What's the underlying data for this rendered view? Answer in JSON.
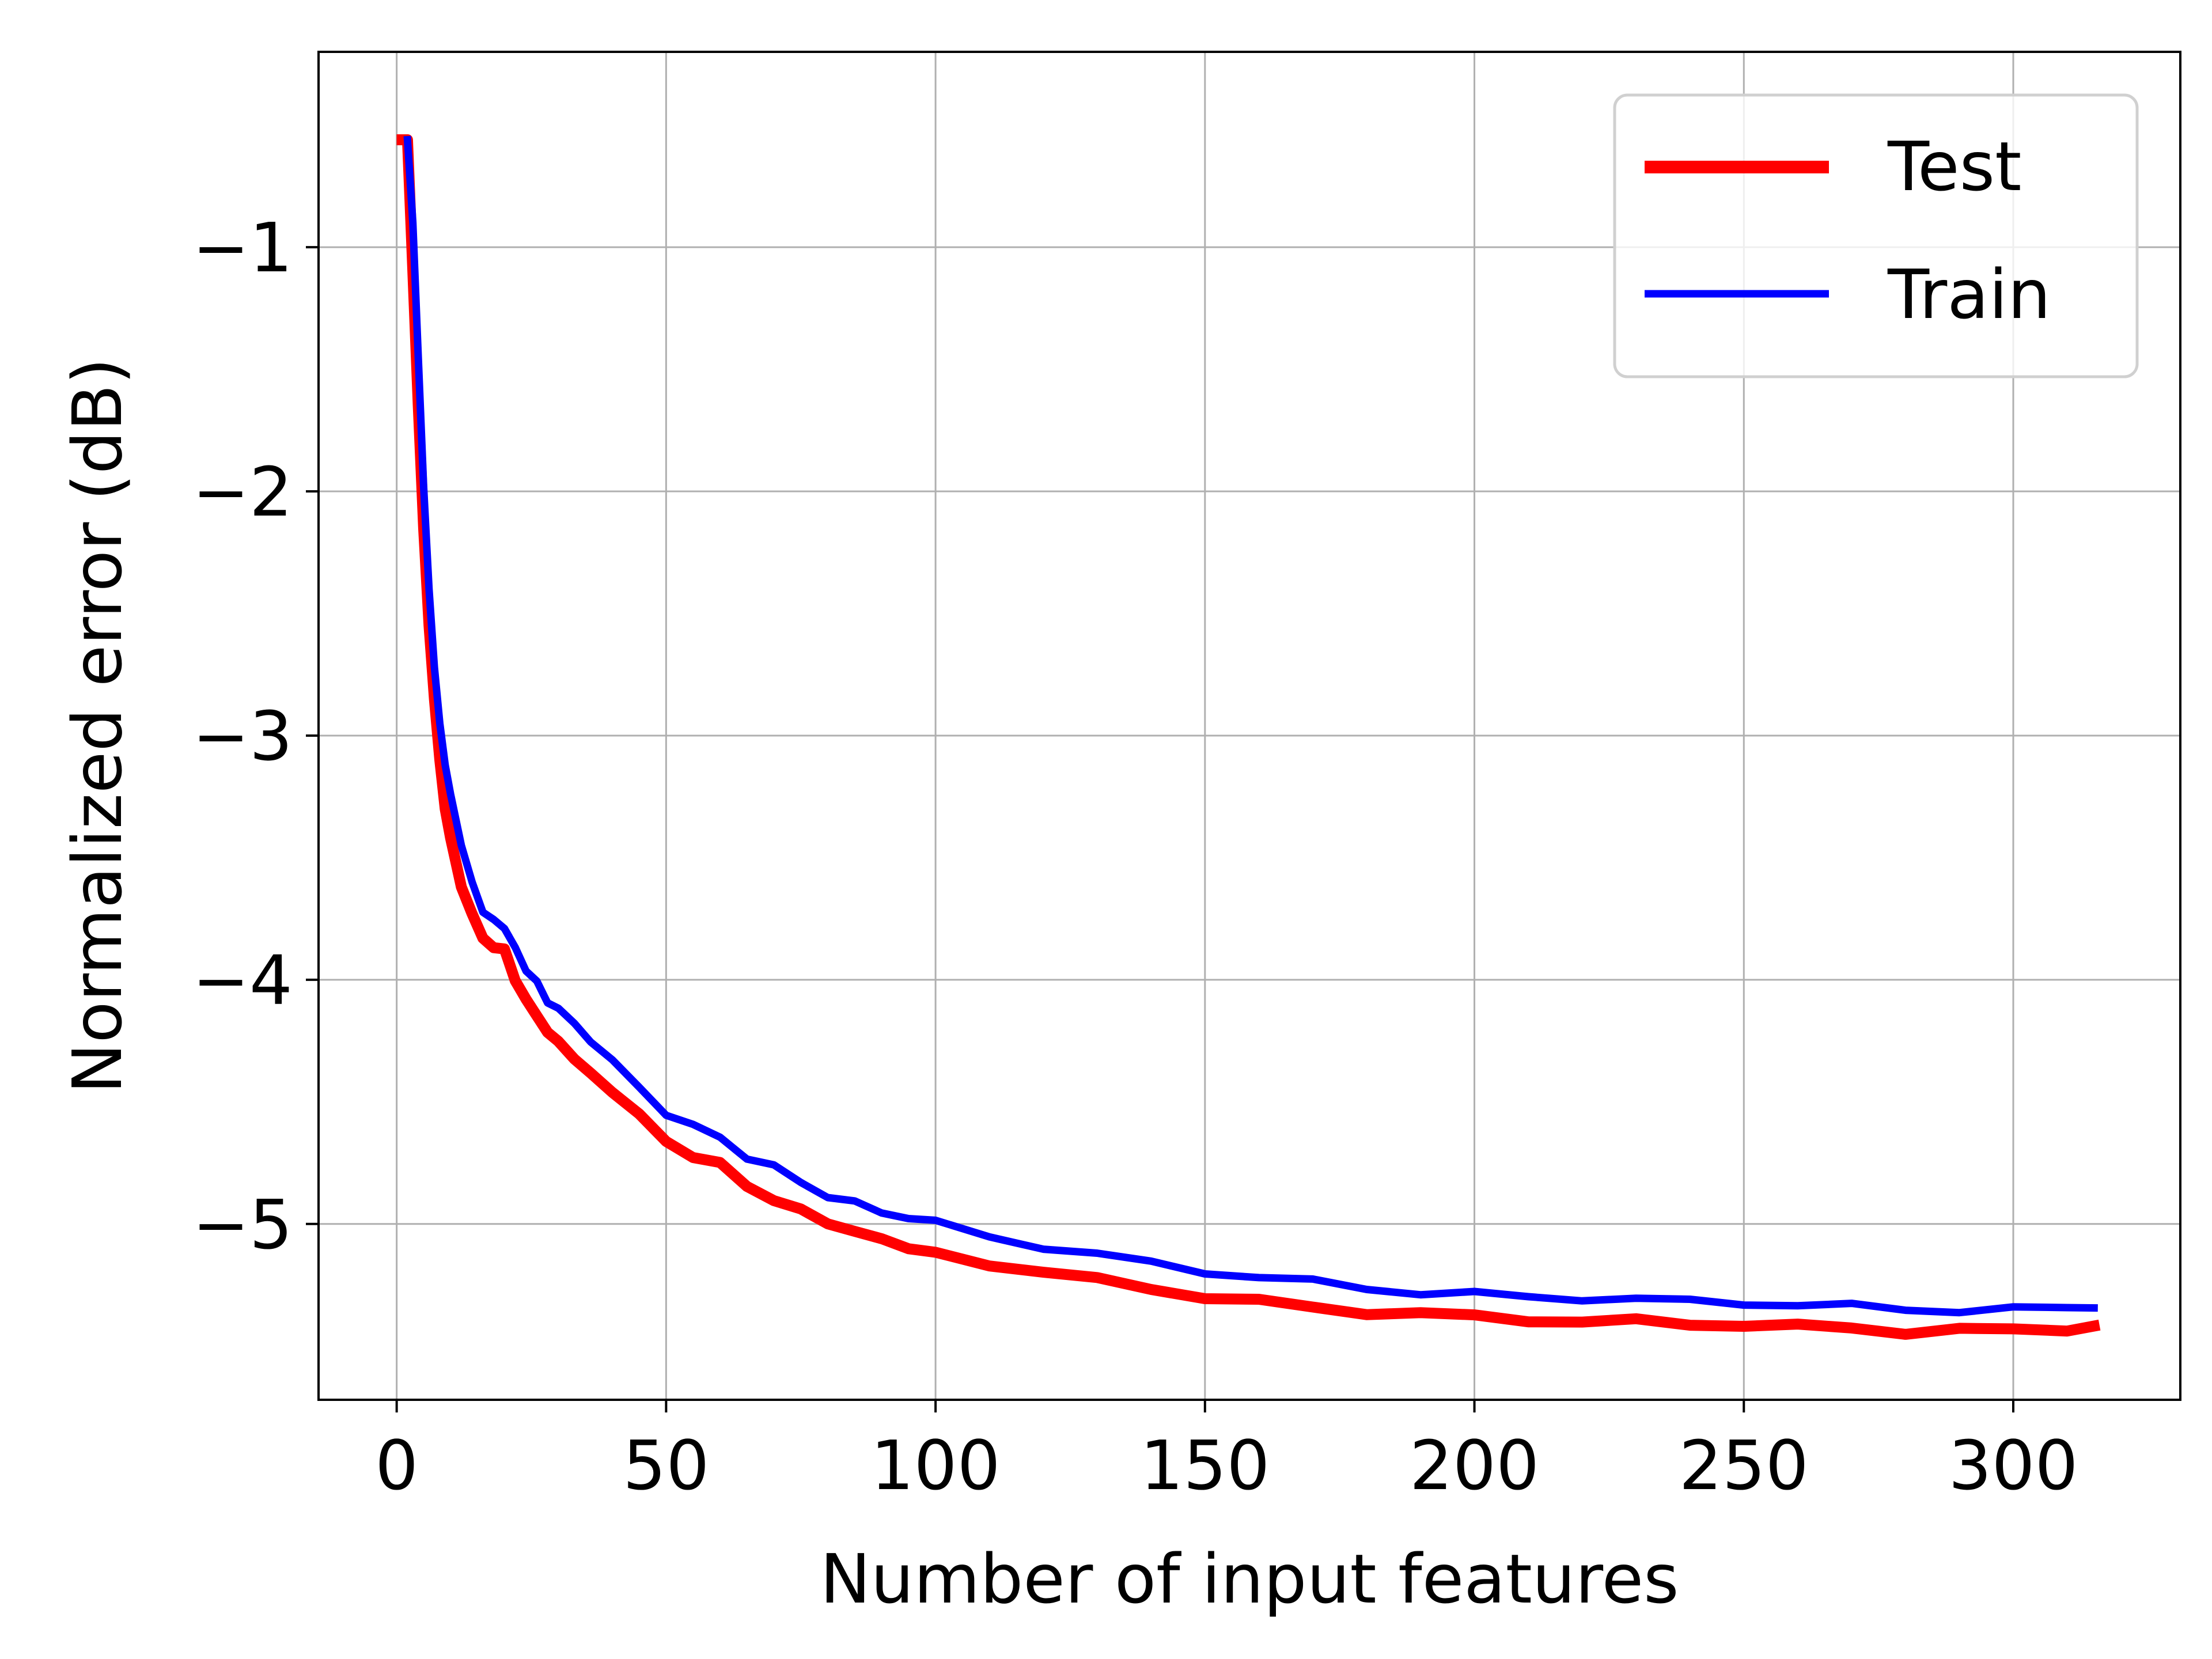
{
  "chart_data": {
    "type": "line",
    "xlabel": "Number of input features",
    "ylabel": "Normalized error (dB)",
    "xlim": [
      -14.5,
      331
    ],
    "ylim": [
      -5.72,
      -0.2
    ],
    "xticks": [
      0,
      50,
      100,
      150,
      200,
      250,
      300
    ],
    "xtick_labels": [
      "0",
      "50",
      "100",
      "150",
      "200",
      "250",
      "300"
    ],
    "yticks": [
      -1,
      -2,
      -3,
      -4,
      -5
    ],
    "ytick_labels": [
      "−1",
      "−2",
      "−3",
      "−4",
      "−5"
    ],
    "grid": true,
    "legend_position": "top-right",
    "series": [
      {
        "name": "Test",
        "color": "#ff0000",
        "style": "thick",
        "x": [
          1,
          2,
          3,
          4,
          5,
          6,
          7,
          8,
          9,
          10,
          12,
          14,
          16,
          18,
          20,
          22,
          24,
          26,
          28,
          30,
          33,
          36,
          40,
          45,
          50,
          55,
          60,
          65,
          70,
          75,
          80,
          85,
          90,
          95,
          100,
          110,
          120,
          130,
          140,
          150,
          160,
          170,
          180,
          190,
          200,
          210,
          220,
          230,
          240,
          250,
          260,
          270,
          280,
          290,
          300,
          310,
          315
        ],
        "y": [
          -0.56,
          -0.56,
          -1.1,
          -1.65,
          -2.15,
          -2.55,
          -2.85,
          -3.1,
          -3.3,
          -3.42,
          -3.62,
          -3.73,
          -3.84,
          -3.86,
          -3.88,
          -4.0,
          -4.08,
          -4.15,
          -4.21,
          -4.26,
          -4.32,
          -4.37,
          -4.45,
          -4.56,
          -4.66,
          -4.72,
          -4.76,
          -4.84,
          -4.9,
          -4.95,
          -4.99,
          -5.03,
          -5.07,
          -5.09,
          -5.12,
          -5.16,
          -5.2,
          -5.23,
          -5.26,
          -5.3,
          -5.32,
          -5.34,
          -5.36,
          -5.37,
          -5.38,
          -5.39,
          -5.4,
          -5.4,
          -5.41,
          -5.41,
          -5.42,
          -5.43,
          -5.44,
          -5.43,
          -5.44,
          -5.43,
          -5.43
        ]
      },
      {
        "name": "Train",
        "color": "#0000ff",
        "style": "thin",
        "x": [
          2,
          3,
          4,
          5,
          6,
          7,
          8,
          9,
          10,
          12,
          14,
          16,
          18,
          20,
          22,
          24,
          26,
          28,
          30,
          33,
          36,
          40,
          45,
          50,
          55,
          60,
          65,
          70,
          75,
          80,
          85,
          90,
          95,
          100,
          110,
          120,
          130,
          140,
          150,
          160,
          170,
          180,
          190,
          200,
          210,
          220,
          230,
          240,
          250,
          260,
          270,
          280,
          290,
          300,
          310,
          315
        ],
        "y": [
          -0.56,
          -0.9,
          -1.45,
          -1.98,
          -2.4,
          -2.72,
          -2.95,
          -3.12,
          -3.24,
          -3.45,
          -3.6,
          -3.72,
          -3.76,
          -3.78,
          -3.88,
          -3.95,
          -4.02,
          -4.08,
          -4.13,
          -4.19,
          -4.25,
          -4.33,
          -4.45,
          -4.54,
          -4.6,
          -4.65,
          -4.72,
          -4.77,
          -4.83,
          -4.88,
          -4.92,
          -4.95,
          -4.97,
          -5.0,
          -5.05,
          -5.09,
          -5.13,
          -5.16,
          -5.19,
          -5.22,
          -5.24,
          -5.26,
          -5.28,
          -5.29,
          -5.3,
          -5.3,
          -5.31,
          -5.32,
          -5.32,
          -5.33,
          -5.34,
          -5.35,
          -5.35,
          -5.35,
          -5.35,
          -5.35
        ]
      }
    ]
  }
}
